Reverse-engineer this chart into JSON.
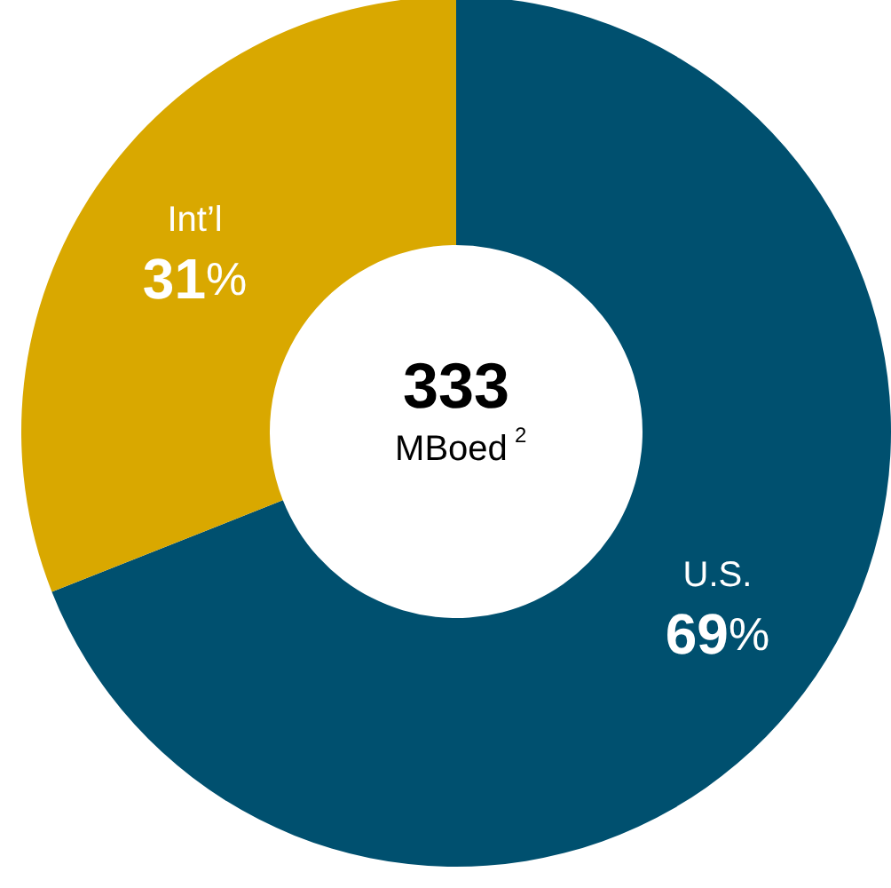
{
  "chart_data": {
    "type": "donut",
    "title": "333",
    "subtitle": "MBoed$^{2}$",
    "categories": [
      "U.S.",
      "Int’l"
    ],
    "values": [
      69,
      31
    ],
    "colors": [
      "#00506f",
      "#d9a800"
    ],
    "value_labels": [
      "69%",
      "31%"
    ],
    "legend": false
  }
}
